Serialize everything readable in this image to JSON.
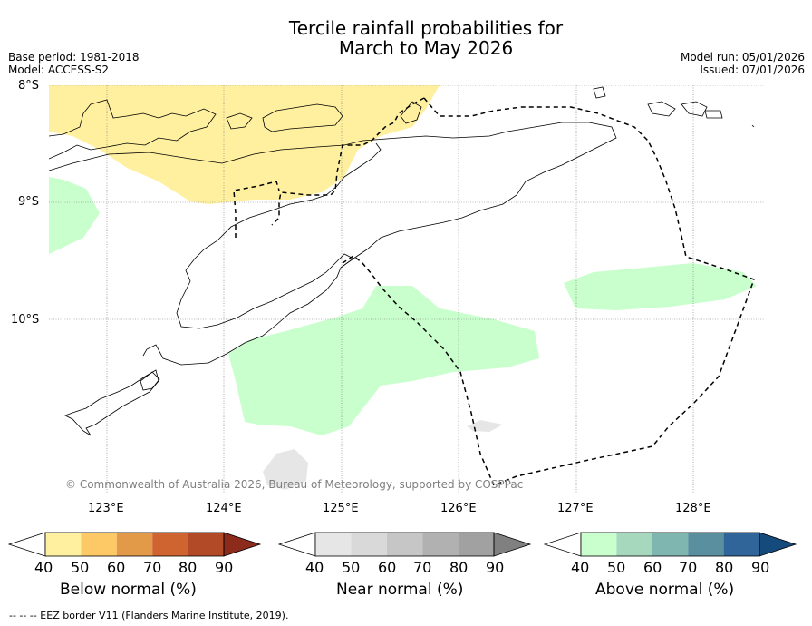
{
  "title_line1": "Tercile rainfall probabilities for",
  "title_line2": "March to May 2026",
  "left_meta": {
    "base_period": "Base period: 1981-2018",
    "model": "Model: ACCESS-S2"
  },
  "right_meta": {
    "model_run": "Model run: 05/01/2026",
    "issued": "Issued: 07/01/2026"
  },
  "lat_labels": [
    "8°S",
    "9°S",
    "10°S"
  ],
  "lon_labels": [
    "123°E",
    "124°E",
    "125°E",
    "126°E",
    "127°E",
    "128°E"
  ],
  "copyright": "© Commonwealth of Australia 2026, Bureau of Meteorology, supported by COSPPac",
  "colorbars": [
    {
      "label": "Below normal (%)",
      "ticks": [
        "40",
        "50",
        "60",
        "70",
        "80",
        "90"
      ],
      "colors": [
        "#ffffff",
        "#fff0a0",
        "#fdc866",
        "#e29a49",
        "#cf6430",
        "#b24a28",
        "#8c2a1c"
      ]
    },
    {
      "label": "Near normal (%)",
      "ticks": [
        "40",
        "50",
        "60",
        "70",
        "80",
        "90"
      ],
      "colors": [
        "#ffffff",
        "#e6e6e6",
        "#d9d9d9",
        "#c6c6c6",
        "#b1b1b1",
        "#a1a1a1",
        "#808080"
      ]
    },
    {
      "label": "Above normal (%)",
      "ticks": [
        "40",
        "50",
        "60",
        "70",
        "80",
        "90"
      ],
      "colors": [
        "#ffffff",
        "#c8ffcc",
        "#a5d8bd",
        "#7fb6b0",
        "#5a8fa0",
        "#2f6599",
        "#144a7c"
      ]
    }
  ],
  "map_colors": {
    "below": "#fff0a0",
    "near": "#e6e6e6",
    "above": "#c8ffcc"
  },
  "footer": "--  --  -- EEZ border V11 (Flanders Marine Institute, 2019)."
}
